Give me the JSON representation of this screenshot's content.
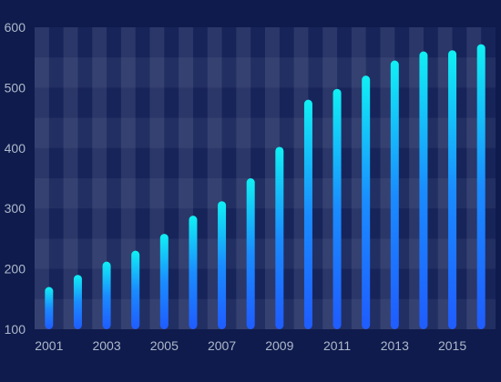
{
  "colors": {
    "background": "#0f1b4c",
    "bar_top": "#10f0f4",
    "bar_bottom": "#1f66ff",
    "tick_text": "#aeb8cc",
    "grid_light": "#2d3a6a"
  },
  "chart_data": {
    "type": "bar",
    "title": "",
    "xlabel": "",
    "ylabel": "",
    "ylim": [
      100,
      600
    ],
    "y_ticks": [
      100,
      200,
      300,
      400,
      500,
      600
    ],
    "categories": [
      "2001",
      "2002",
      "2003",
      "2004",
      "2005",
      "2006",
      "2007",
      "2008",
      "2009",
      "2010",
      "2011",
      "2012",
      "2013",
      "2014",
      "2015",
      "2016"
    ],
    "x_tick_labels": [
      "2001",
      "2003",
      "2005",
      "2007",
      "2009",
      "2011",
      "2013",
      "2015"
    ],
    "values": [
      170,
      190,
      212,
      230,
      258,
      288,
      312,
      350,
      402,
      480,
      498,
      520,
      545,
      560,
      562,
      572
    ],
    "grid": "checkered",
    "legend": "none"
  }
}
